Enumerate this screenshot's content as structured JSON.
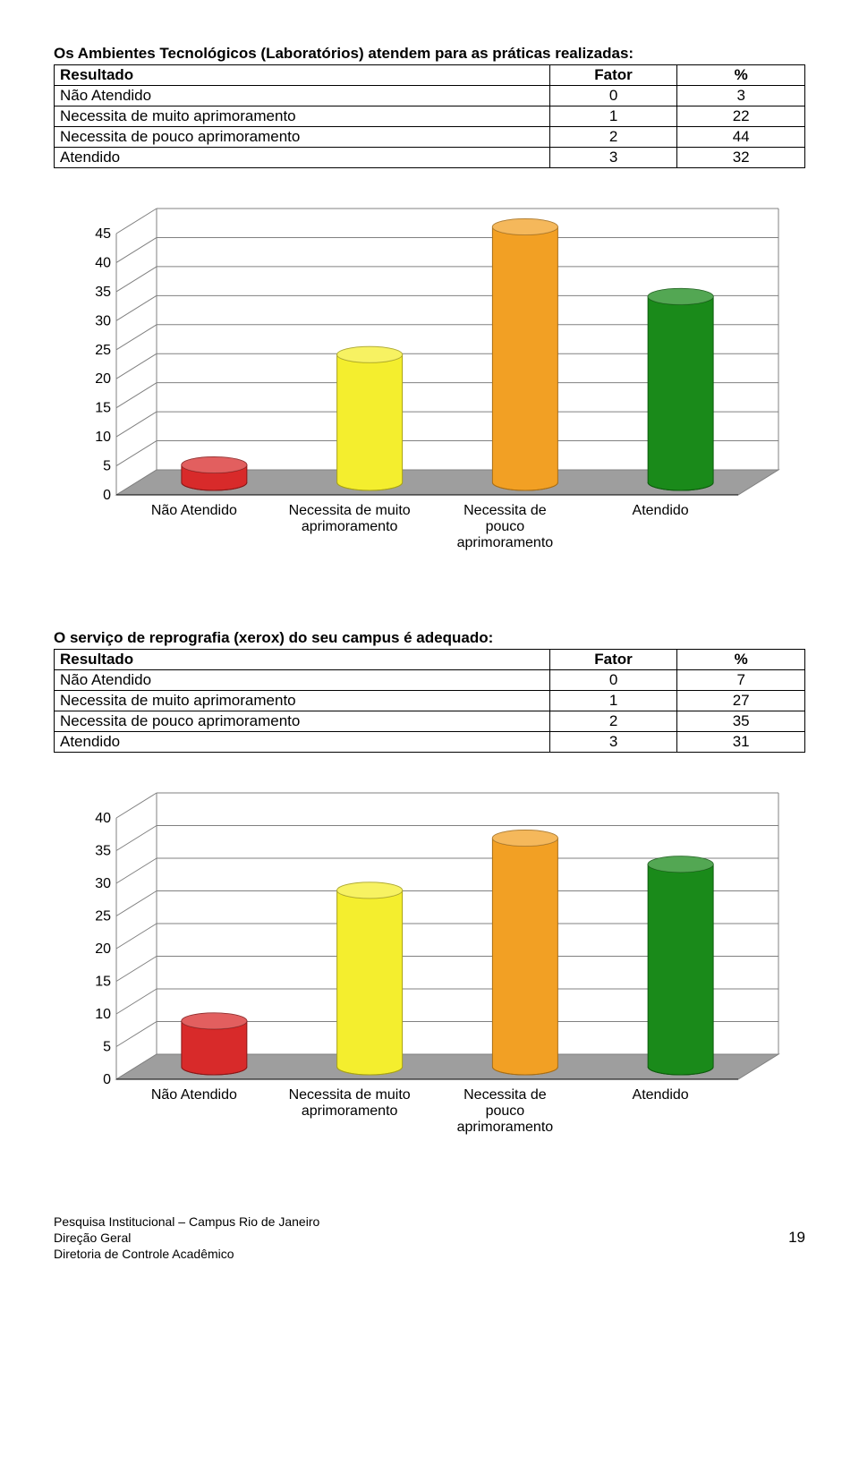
{
  "section1": {
    "title": "Os Ambientes Tecnológicos (Laboratórios) atendem para as práticas realizadas:",
    "header": {
      "c0": "Resultado",
      "c1": "Fator",
      "c2": "%"
    },
    "rows": [
      {
        "label": "Não Atendido",
        "factor": "0",
        "pct": "3"
      },
      {
        "label": "Necessita de muito aprimoramento",
        "factor": "1",
        "pct": "22"
      },
      {
        "label": "Necessita de pouco aprimoramento",
        "factor": "2",
        "pct": "44"
      },
      {
        "label": "Atendido",
        "factor": "3",
        "pct": "32"
      }
    ]
  },
  "chart1": {
    "type": "3d-cylinder-bar",
    "categories": [
      "Não Atendido",
      "Necessita de muito\naprimoramento",
      "Necessita de\npouco\naprimoramento",
      "Atendido"
    ],
    "values": [
      3,
      22,
      44,
      32
    ],
    "bar_colors": [
      "#d82a2a",
      "#f4ee2e",
      "#f2a024",
      "#1a8a1a"
    ],
    "bar_edge_colors": [
      "#8a1717",
      "#a8a218",
      "#a86e16",
      "#0e5c0e"
    ],
    "ylim": [
      0,
      45
    ],
    "ytick_step": 5,
    "yticks": [
      0,
      5,
      10,
      15,
      20,
      25,
      30,
      35,
      40,
      45
    ],
    "grid_color": "#808080",
    "floor_color": "#9e9e9e",
    "background_color": "#ffffff",
    "axis_fontsize": 16,
    "label_fontsize": 16
  },
  "section2": {
    "title": "O serviço de reprografia (xerox) do seu campus é adequado:",
    "header": {
      "c0": "Resultado",
      "c1": "Fator",
      "c2": "%"
    },
    "rows": [
      {
        "label": "Não Atendido",
        "factor": "0",
        "pct": "7"
      },
      {
        "label": "Necessita de muito aprimoramento",
        "factor": "1",
        "pct": "27"
      },
      {
        "label": "Necessita de pouco aprimoramento",
        "factor": "2",
        "pct": "35"
      },
      {
        "label": "Atendido",
        "factor": "3",
        "pct": "31"
      }
    ]
  },
  "chart2": {
    "type": "3d-cylinder-bar",
    "categories": [
      "Não Atendido",
      "Necessita de muito\naprimoramento",
      "Necessita de\npouco\naprimoramento",
      "Atendido"
    ],
    "values": [
      7,
      27,
      35,
      31
    ],
    "bar_colors": [
      "#d82a2a",
      "#f4ee2e",
      "#f2a024",
      "#1a8a1a"
    ],
    "bar_edge_colors": [
      "#8a1717",
      "#a8a218",
      "#a86e16",
      "#0e5c0e"
    ],
    "ylim": [
      0,
      40
    ],
    "ytick_step": 5,
    "yticks": [
      0,
      5,
      10,
      15,
      20,
      25,
      30,
      35,
      40
    ],
    "grid_color": "#808080",
    "floor_color": "#9e9e9e",
    "background_color": "#ffffff",
    "axis_fontsize": 16,
    "label_fontsize": 16
  },
  "footer": {
    "line1": "Pesquisa Institucional – Campus Rio de Janeiro",
    "line2": "Direção Geral",
    "line3": "Diretoria de Controle Acadêmico",
    "page_number": "19"
  }
}
